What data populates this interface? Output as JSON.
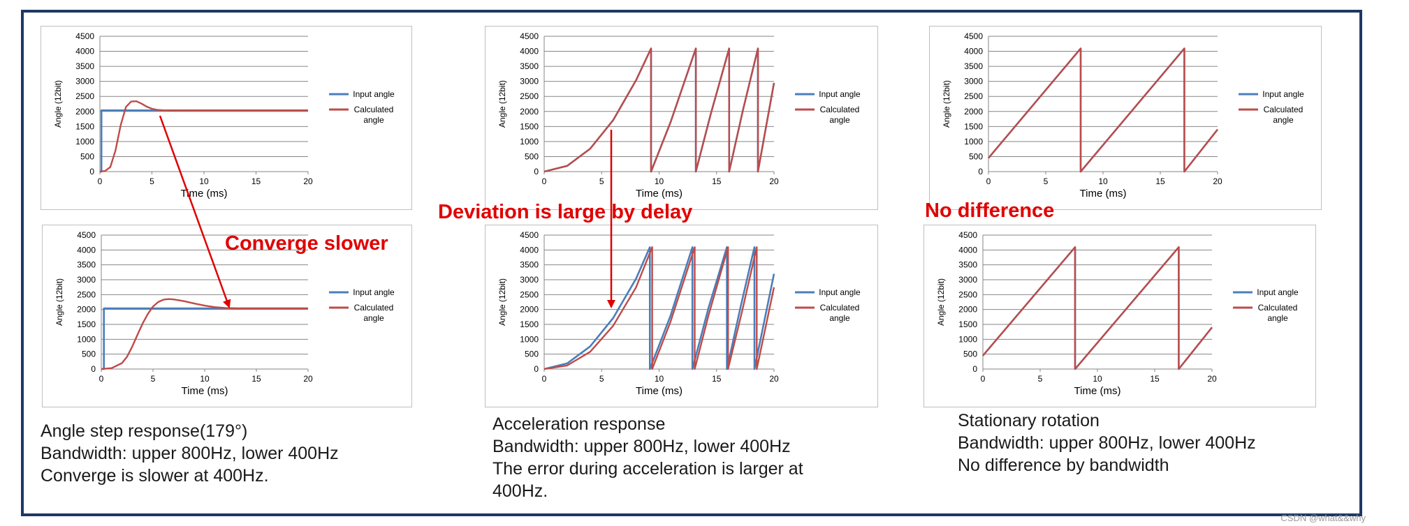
{
  "chart_data": [
    {
      "id": "step_800",
      "type": "line",
      "xlabel": "Time (ms)",
      "ylabel": "Angle (12bit)",
      "xlim": [
        0,
        20
      ],
      "ylim": [
        0,
        4500
      ],
      "xticks": [
        0,
        5,
        10,
        15,
        20
      ],
      "yticks": [
        0,
        500,
        1000,
        1500,
        2000,
        2500,
        3000,
        3500,
        4000,
        4500
      ],
      "grid": true,
      "legend": "right",
      "series": [
        {
          "name": "Input angle",
          "color": "#4a7ebb",
          "x": [
            0,
            0.15,
            0.15,
            20
          ],
          "y": [
            0,
            0,
            2036,
            2036
          ]
        },
        {
          "name": "Calculated\nangle",
          "color": "#be4b48",
          "x": [
            0,
            0.5,
            1.0,
            1.5,
            2.0,
            2.5,
            3.0,
            3.5,
            4.0,
            4.5,
            5.0,
            5.5,
            6.0,
            7.0,
            8.0,
            10.0,
            20.0
          ],
          "y": [
            0,
            20,
            150,
            700,
            1550,
            2150,
            2330,
            2340,
            2260,
            2160,
            2090,
            2055,
            2040,
            2030,
            2034,
            2036,
            2036
          ]
        }
      ]
    },
    {
      "id": "accel_800",
      "type": "line",
      "xlabel": "Time (ms)",
      "ylabel": "Angle (12bit)",
      "xlim": [
        0,
        20
      ],
      "ylim": [
        0,
        4500
      ],
      "xticks": [
        0,
        5,
        10,
        15,
        20
      ],
      "yticks": [
        0,
        500,
        1000,
        1500,
        2000,
        2500,
        3000,
        3500,
        4000,
        4500
      ],
      "grid": true,
      "legend": "right",
      "series": [
        {
          "name": "Input angle",
          "color": "#4a7ebb",
          "x": [
            0,
            2,
            4,
            6,
            8,
            9.3,
            9.3,
            11,
            13.2,
            13.2,
            14.5,
            16.1,
            16.1,
            17.3,
            18.6,
            18.6,
            20
          ],
          "y": [
            0,
            190,
            760,
            1710,
            3040,
            4095,
            0,
            1650,
            4095,
            0,
            1920,
            4095,
            0,
            2050,
            4095,
            0,
            2950
          ]
        },
        {
          "name": "Calculated\nangle",
          "color": "#be4b48",
          "x": [
            0,
            2,
            4,
            6,
            8,
            9.3,
            9.3,
            11,
            13.2,
            13.2,
            14.5,
            16.1,
            16.1,
            17.3,
            18.6,
            18.6,
            20
          ],
          "y": [
            0,
            190,
            760,
            1710,
            3040,
            4095,
            0,
            1650,
            4095,
            0,
            1920,
            4095,
            0,
            2050,
            4095,
            0,
            2950
          ]
        }
      ]
    },
    {
      "id": "rot_800",
      "type": "line",
      "xlabel": "Time (ms)",
      "ylabel": "Angle (12bit)",
      "xlim": [
        0,
        20
      ],
      "ylim": [
        0,
        4500
      ],
      "xticks": [
        0,
        5,
        10,
        15,
        20
      ],
      "yticks": [
        0,
        500,
        1000,
        1500,
        2000,
        2500,
        3000,
        3500,
        4000,
        4500
      ],
      "grid": true,
      "legend": "right",
      "series": [
        {
          "name": "Input angle",
          "color": "#4a7ebb",
          "x": [
            0,
            8.05,
            8.05,
            17.1,
            17.1,
            20
          ],
          "y": [
            450,
            4095,
            0,
            4095,
            0,
            1400
          ]
        },
        {
          "name": "Calculated\nangle",
          "color": "#be4b48",
          "x": [
            0,
            8.05,
            8.05,
            17.1,
            17.1,
            20
          ],
          "y": [
            450,
            4095,
            0,
            4095,
            0,
            1400
          ]
        }
      ]
    },
    {
      "id": "step_400",
      "type": "line",
      "xlabel": "Time (ms)",
      "ylabel": "Angle (12bit)",
      "xlim": [
        0,
        20
      ],
      "ylim": [
        0,
        4500
      ],
      "xticks": [
        0,
        5,
        10,
        15,
        20
      ],
      "yticks": [
        0,
        500,
        1000,
        1500,
        2000,
        2500,
        3000,
        3500,
        4000,
        4500
      ],
      "grid": true,
      "legend": "right",
      "series": [
        {
          "name": "Input angle",
          "color": "#4a7ebb",
          "x": [
            0,
            0.25,
            0.25,
            20
          ],
          "y": [
            0,
            0,
            2036,
            2036
          ]
        },
        {
          "name": "Calculated\nangle",
          "color": "#be4b48",
          "x": [
            0,
            1,
            2,
            2.5,
            3,
            3.5,
            4,
            4.5,
            5,
            5.5,
            6,
            6.5,
            7,
            8,
            9,
            10,
            11,
            12,
            13,
            14,
            20
          ],
          "y": [
            0,
            30,
            200,
            420,
            760,
            1150,
            1530,
            1850,
            2100,
            2250,
            2330,
            2350,
            2340,
            2280,
            2200,
            2130,
            2080,
            2050,
            2040,
            2036,
            2036
          ]
        }
      ]
    },
    {
      "id": "accel_400",
      "type": "line",
      "xlabel": "Time (ms)",
      "ylabel": "Angle (12bit)",
      "xlim": [
        0,
        20
      ],
      "ylim": [
        0,
        4500
      ],
      "xticks": [
        0,
        5,
        10,
        15,
        20
      ],
      "yticks": [
        0,
        500,
        1000,
        1500,
        2000,
        2500,
        3000,
        3500,
        4000,
        4500
      ],
      "grid": true,
      "legend": "right",
      "series": [
        {
          "name": "Input angle",
          "color": "#4a7ebb",
          "x": [
            0,
            2,
            4,
            6,
            8,
            9.2,
            9.2,
            11,
            12.9,
            12.9,
            14.3,
            15.9,
            15.9,
            17.1,
            18.3,
            18.3,
            20
          ],
          "y": [
            0,
            190,
            760,
            1710,
            3040,
            4095,
            0,
            1800,
            4095,
            0,
            2050,
            4095,
            0,
            2100,
            4095,
            0,
            3200
          ]
        },
        {
          "name": "Calculated\nangle",
          "color": "#be4b48",
          "x": [
            0,
            2,
            4,
            6,
            8,
            9.4,
            9.4,
            11,
            13.1,
            13.1,
            14.3,
            16.0,
            16.0,
            17.2,
            18.5,
            18.5,
            20
          ],
          "y": [
            0,
            120,
            580,
            1450,
            2750,
            4095,
            0,
            1600,
            4095,
            0,
            1800,
            4095,
            0,
            1900,
            4095,
            0,
            2750
          ]
        }
      ]
    },
    {
      "id": "rot_400",
      "type": "line",
      "xlabel": "Time (ms)",
      "ylabel": "Angle (12bit)",
      "xlim": [
        0,
        20
      ],
      "ylim": [
        0,
        4500
      ],
      "xticks": [
        0,
        5,
        10,
        15,
        20
      ],
      "yticks": [
        0,
        500,
        1000,
        1500,
        2000,
        2500,
        3000,
        3500,
        4000,
        4500
      ],
      "grid": true,
      "legend": "right",
      "series": [
        {
          "name": "Input angle",
          "color": "#4a7ebb",
          "x": [
            0,
            8.05,
            8.05,
            17.1,
            17.1,
            20
          ],
          "y": [
            450,
            4095,
            0,
            4095,
            0,
            1400
          ]
        },
        {
          "name": "Calculated\nangle",
          "color": "#be4b48",
          "x": [
            0,
            8.05,
            8.05,
            17.1,
            17.1,
            20
          ],
          "y": [
            450,
            4095,
            0,
            4095,
            0,
            1400
          ]
        }
      ]
    }
  ],
  "callouts": {
    "converge_slower": "Converge slower",
    "deviation": "Deviation is large by delay",
    "no_difference": "No difference",
    "color": "#e00000"
  },
  "captions": {
    "step": {
      "line1": "Angle step response(179°)",
      "line2": "Bandwidth: upper 800Hz,  lower 400Hz",
      "line3": "Converge is slower at 400Hz."
    },
    "accel": {
      "line1": "Acceleration response",
      "line2": "Bandwidth: upper 800Hz, lower 400Hz",
      "line3": "The error during acceleration is larger at",
      "line4": "400Hz."
    },
    "rotation": {
      "line1": "Stationary rotation",
      "line2": "Bandwidth: upper 800Hz, lower 400Hz",
      "line3": "No difference by bandwidth"
    }
  },
  "watermark": "CSDN @what&&why",
  "frame_color": "#1f3864"
}
